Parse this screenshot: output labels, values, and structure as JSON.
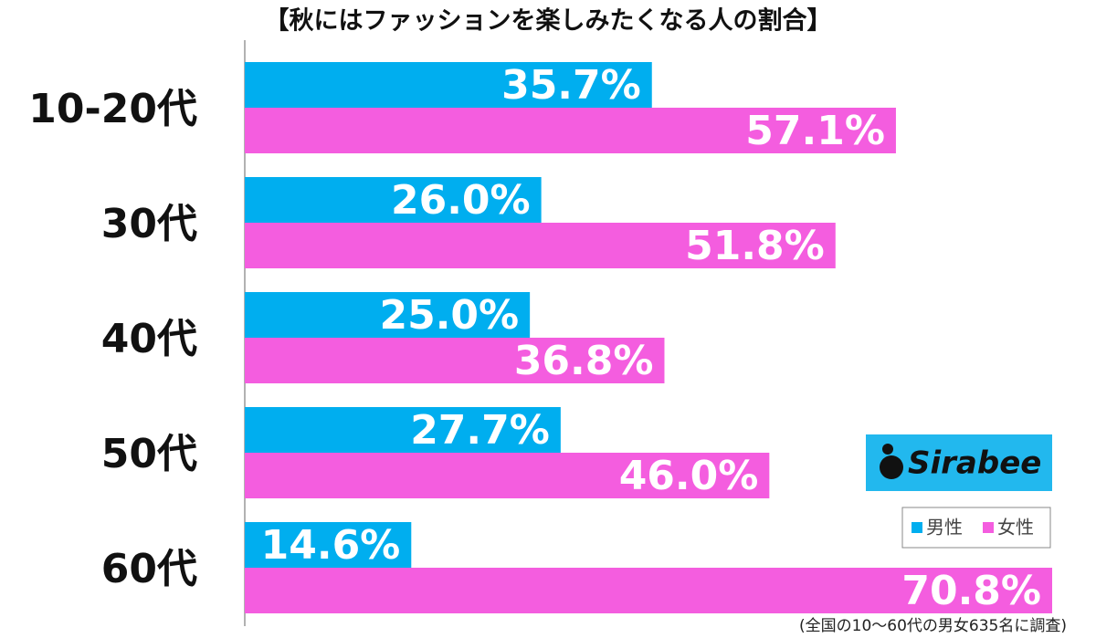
{
  "chart_data": {
    "type": "hbar",
    "title": "【秋にはファッションを楽しみたくなる人の割合】",
    "categories": [
      "10-20代",
      "30代",
      "40代",
      "50代",
      "60代"
    ],
    "series": [
      {
        "name": "男性",
        "color": "#00aeef",
        "values": [
          35.7,
          26.0,
          25.0,
          27.7,
          14.6
        ],
        "value_labels": [
          "35.7%",
          "26.0%",
          "25.0%",
          "27.7%",
          "14.6%"
        ]
      },
      {
        "name": "女性",
        "color": "#f45ddf",
        "values": [
          57.1,
          51.8,
          36.8,
          46.0,
          70.8
        ],
        "value_labels": [
          "57.1%",
          "51.8%",
          "36.8%",
          "46.0%",
          "70.8%"
        ]
      }
    ],
    "legend": "right",
    "logo": "Sirabee",
    "note": "(全国の10〜60代の男女635名に調査)"
  }
}
